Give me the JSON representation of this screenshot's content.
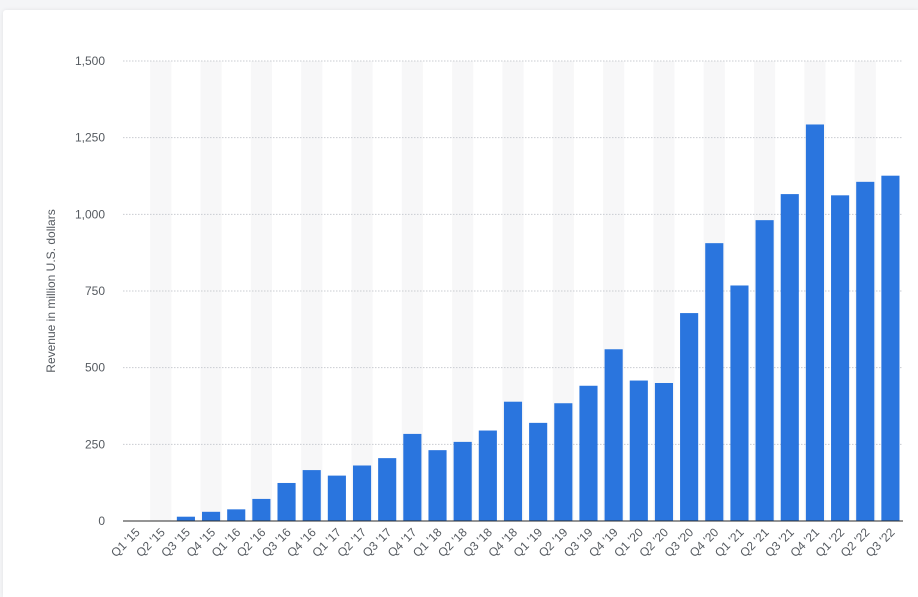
{
  "chart_data": {
    "type": "bar",
    "ylabel": "Revenue in million U.S. dollars",
    "xlabel": "",
    "ylim": [
      0,
      1500
    ],
    "yticks": [
      0,
      250,
      500,
      750,
      1000,
      1250,
      1500
    ],
    "ytick_labels": [
      "0",
      "250",
      "500",
      "750",
      "1,000",
      "1,250",
      "1,500"
    ],
    "grid": true,
    "bar_color": "#2a75de",
    "categories": [
      "Q1 '15",
      "Q2 '15",
      "Q3 '15",
      "Q4 '15",
      "Q1 '16",
      "Q2 '16",
      "Q3 '16",
      "Q4 '16",
      "Q1 '17",
      "Q2 '17",
      "Q3 '17",
      "Q4 '17",
      "Q1 '18",
      "Q2 '18",
      "Q3 '18",
      "Q4 '18",
      "Q1 '19",
      "Q2 '19",
      "Q3 '19",
      "Q4 '19",
      "Q1 '20",
      "Q2 '20",
      "Q3 '20",
      "Q4 '20",
      "Q1 '21",
      "Q2 '21",
      "Q3 '21",
      "Q4 '21",
      "Q1 '22",
      "Q2 '22",
      "Q3 '22"
    ],
    "values": [
      0,
      0,
      14,
      30,
      38,
      72,
      124,
      166,
      148,
      181,
      205,
      284,
      231,
      258,
      295,
      389,
      320,
      384,
      441,
      560,
      458,
      450,
      678,
      906,
      768,
      981,
      1066,
      1293,
      1062,
      1106,
      1126
    ]
  }
}
